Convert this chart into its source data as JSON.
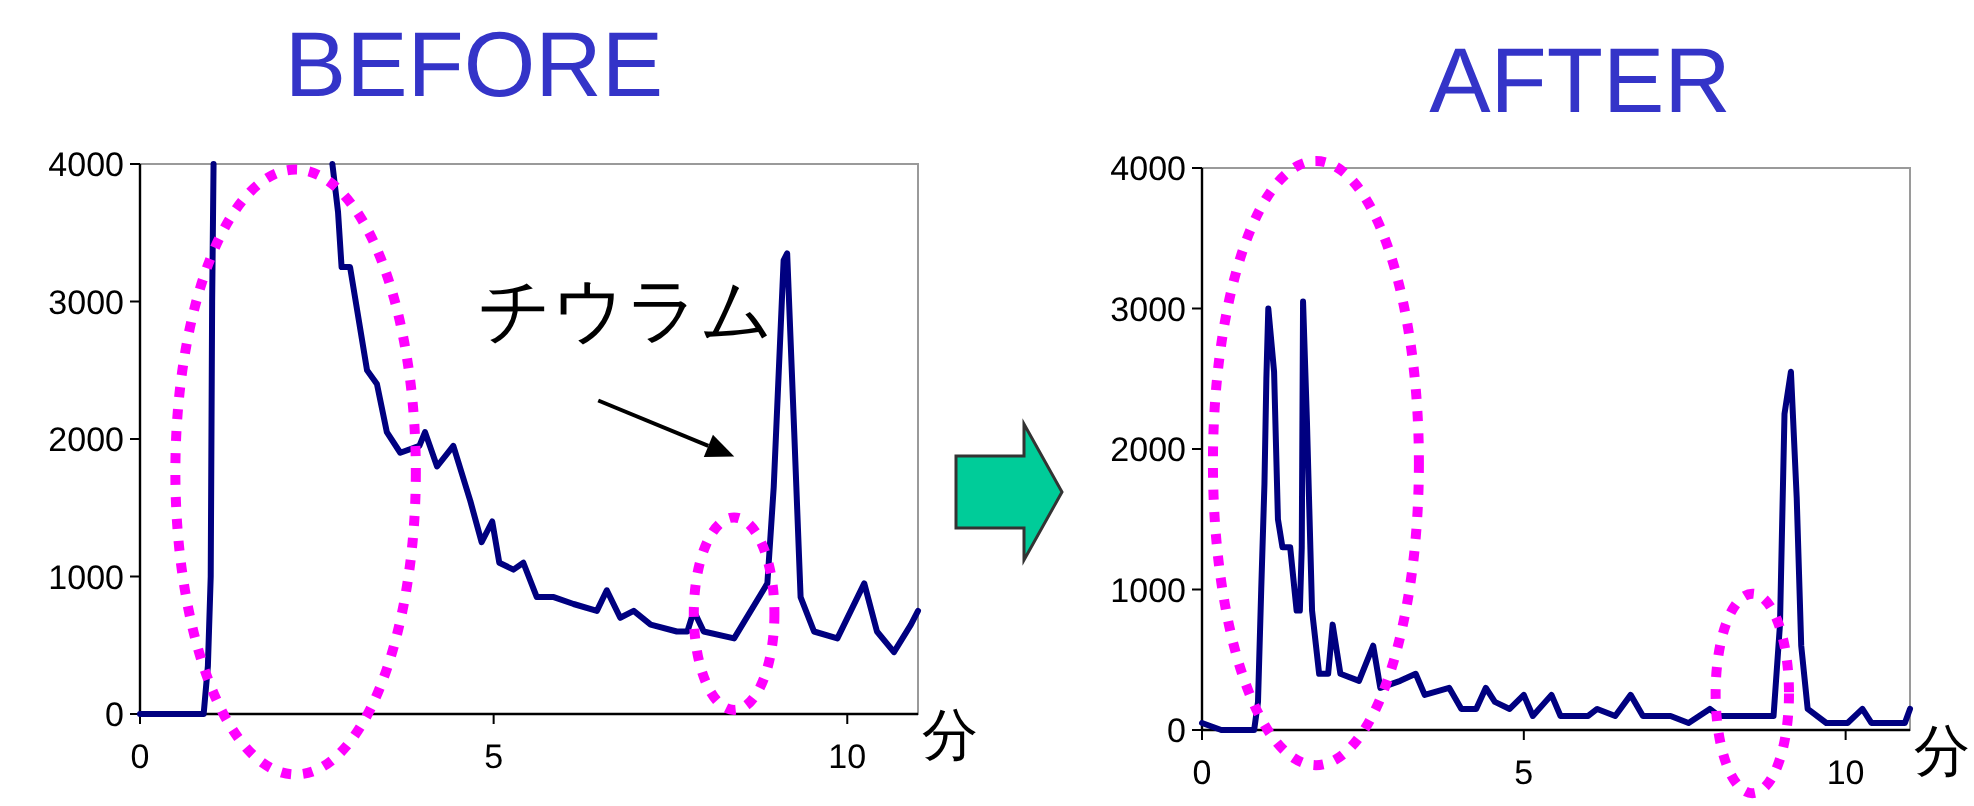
{
  "chart_data": [
    {
      "type": "line",
      "title": "BEFORE",
      "xlabel": "分",
      "xlim": [
        0,
        11
      ],
      "ylim": [
        0,
        4000
      ],
      "xticks": [
        0,
        5,
        10
      ],
      "yticks": [
        0,
        1000,
        2000,
        3000,
        4000
      ],
      "grid": false,
      "marker": "none",
      "line_style": "solid",
      "annotations": [
        "チウラム"
      ],
      "series": [
        {
          "color": "#000080",
          "x": [
            0,
            0.9,
            0.96,
            1.0,
            1.02,
            1.04,
            1.5,
            2.72,
            2.8,
            2.85,
            2.97,
            3.21,
            3.35,
            3.49,
            3.68,
            3.95,
            4.03,
            4.2,
            4.43,
            4.67,
            4.83,
            4.98,
            5.08,
            5.28,
            5.42,
            5.61,
            5.85,
            6.13,
            6.46,
            6.6,
            6.79,
            6.98,
            7.22,
            7.59,
            7.74,
            7.83,
            7.97,
            8.4,
            8.87,
            8.96,
            9.1,
            9.15,
            9.25,
            9.34,
            9.53,
            9.86,
            10.24,
            10.42,
            10.66,
            10.9,
            11
          ],
          "values": [
            0,
            0,
            350,
            1000,
            3000,
            4000,
            null,
            4000,
            3650,
            3250,
            3250,
            2500,
            2400,
            2050,
            1900,
            1950,
            2050,
            1800,
            1950,
            1550,
            1250,
            1400,
            1100,
            1050,
            1100,
            850,
            850,
            800,
            750,
            900,
            700,
            750,
            650,
            600,
            600,
            750,
            600,
            550,
            950,
            1650,
            3300,
            3350,
            2050,
            850,
            600,
            550,
            950,
            600,
            450,
            650,
            750
          ]
        }
      ]
    },
    {
      "type": "line",
      "title": "AFTER",
      "xlabel": "分",
      "xlim": [
        0,
        11
      ],
      "ylim": [
        0,
        4000
      ],
      "xticks": [
        0,
        5,
        10
      ],
      "yticks": [
        0,
        1000,
        2000,
        3000,
        4000
      ],
      "grid": false,
      "marker": "none",
      "line_style": "solid",
      "series": [
        {
          "color": "#000080",
          "x": [
            0,
            0.3,
            0.81,
            0.87,
            0.92,
            0.97,
            1.0,
            1.03,
            1.12,
            1.18,
            1.25,
            1.37,
            1.47,
            1.52,
            1.55,
            1.57,
            1.63,
            1.71,
            1.82,
            1.96,
            2.03,
            2.15,
            2.44,
            2.66,
            2.77,
            3.08,
            3.32,
            3.46,
            3.84,
            4.03,
            4.26,
            4.41,
            4.55,
            4.78,
            5.0,
            5.14,
            5.43,
            5.57,
            6.0,
            6.14,
            6.42,
            6.66,
            6.85,
            7.28,
            7.56,
            7.89,
            8.03,
            8.88,
            8.98,
            9.05,
            9.15,
            9.24,
            9.31,
            9.41,
            9.7,
            10.03,
            10.26,
            10.4,
            10.7,
            10.92,
            11
          ],
          "values": [
            50,
            0,
            0,
            200,
            1000,
            1750,
            2500,
            3000,
            2550,
            1500,
            1300,
            1300,
            850,
            850,
            1300,
            3050,
            2200,
            850,
            400,
            400,
            750,
            400,
            350,
            600,
            300,
            350,
            400,
            250,
            300,
            150,
            150,
            300,
            200,
            150,
            250,
            100,
            250,
            100,
            100,
            150,
            100,
            250,
            100,
            100,
            50,
            150,
            100,
            100,
            750,
            2250,
            2550,
            1650,
            600,
            150,
            50,
            50,
            150,
            50,
            50,
            50,
            150
          ]
        }
      ]
    }
  ]
}
